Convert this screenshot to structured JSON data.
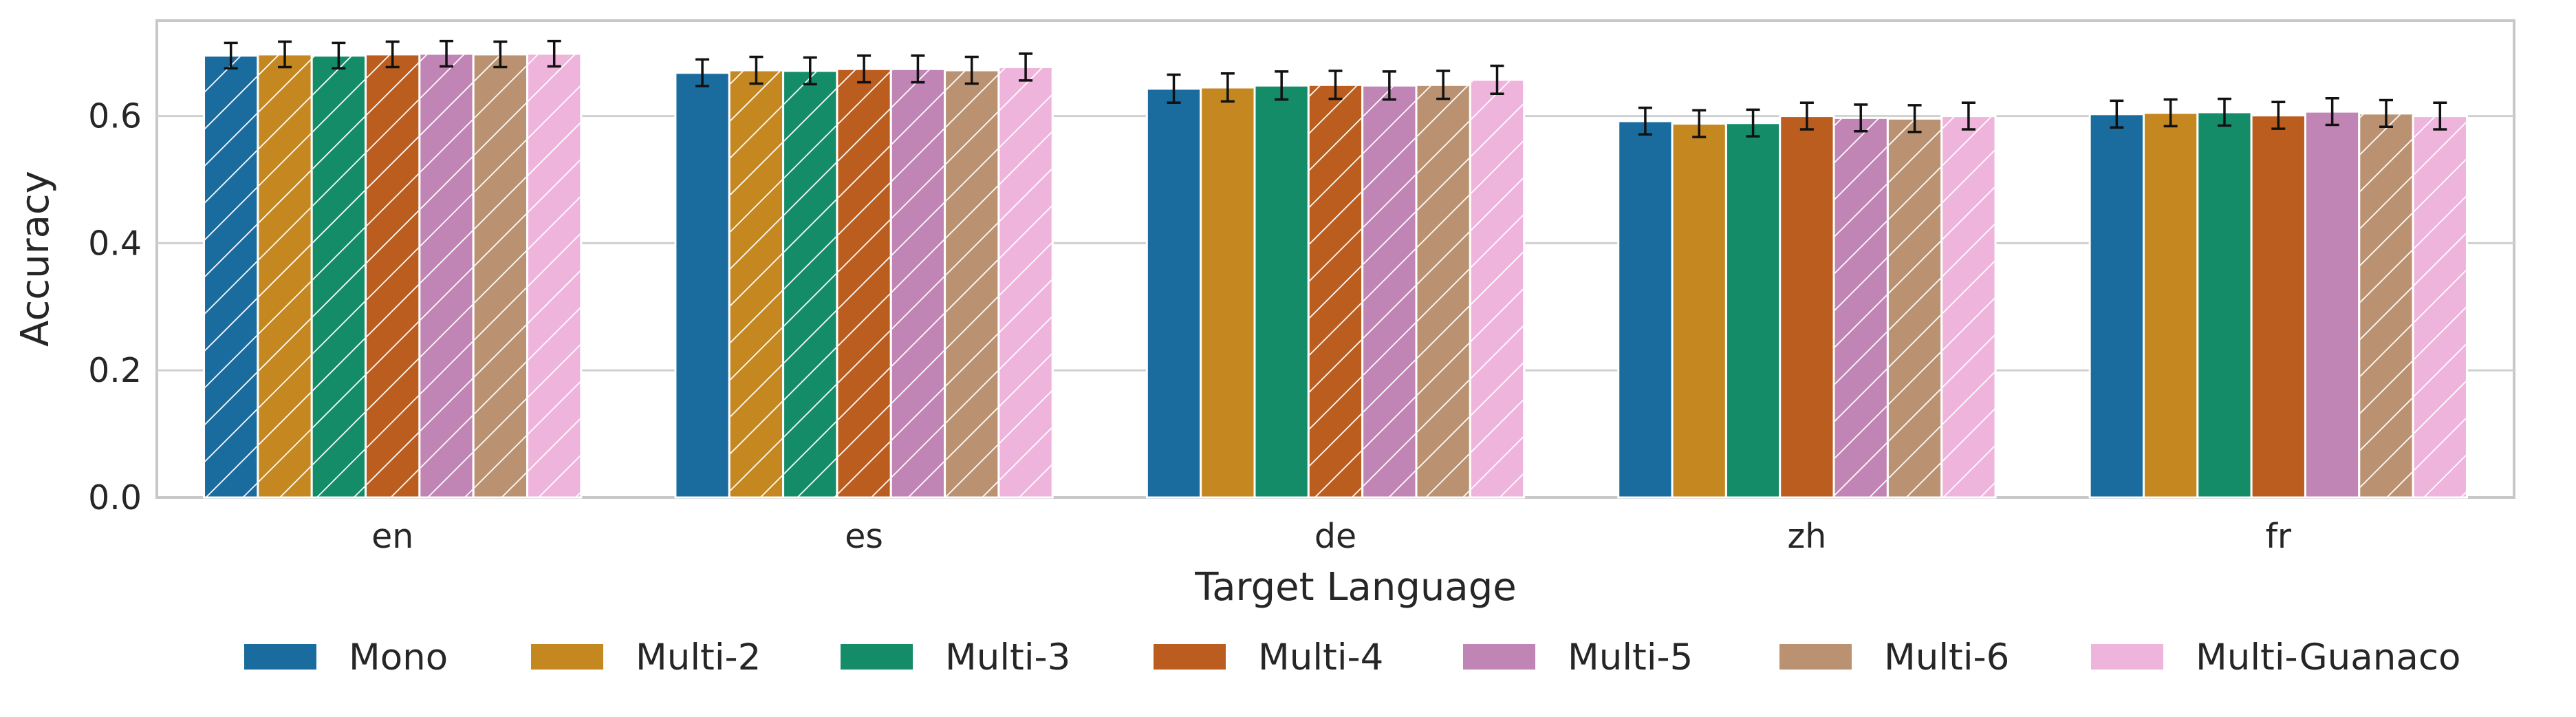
{
  "chart_data": {
    "type": "bar",
    "xlabel": "Target Language",
    "ylabel": "Accuracy",
    "ylim": [
      0,
      0.75
    ],
    "yticks": [
      "0.0",
      "0.2",
      "0.4",
      "0.6"
    ],
    "categories": [
      "en",
      "es",
      "de",
      "zh",
      "fr"
    ],
    "grid": true,
    "legend_placement": "bottom",
    "series": [
      {
        "name": "Mono",
        "color": "#1a6b9e",
        "values": [
          0.695,
          0.668,
          0.643,
          0.592,
          0.603
        ],
        "error": [
          0.02,
          0.021,
          0.022,
          0.021,
          0.021
        ],
        "hatched": [
          true,
          false,
          false,
          false,
          false
        ]
      },
      {
        "name": "Multi-2",
        "color": "#c58720",
        "values": [
          0.697,
          0.672,
          0.645,
          0.588,
          0.605
        ],
        "error": [
          0.02,
          0.021,
          0.022,
          0.021,
          0.021
        ],
        "hatched": [
          true,
          true,
          false,
          false,
          false
        ]
      },
      {
        "name": "Multi-3",
        "color": "#148c68",
        "values": [
          0.695,
          0.671,
          0.648,
          0.589,
          0.606
        ],
        "error": [
          0.02,
          0.021,
          0.022,
          0.021,
          0.021
        ],
        "hatched": [
          true,
          true,
          false,
          false,
          false
        ]
      },
      {
        "name": "Multi-4",
        "color": "#ba5d1e",
        "values": [
          0.697,
          0.674,
          0.649,
          0.6,
          0.601
        ],
        "error": [
          0.02,
          0.021,
          0.022,
          0.021,
          0.021
        ],
        "hatched": [
          true,
          true,
          true,
          false,
          false
        ]
      },
      {
        "name": "Multi-5",
        "color": "#c084b5",
        "values": [
          0.698,
          0.674,
          0.648,
          0.597,
          0.607
        ],
        "error": [
          0.02,
          0.021,
          0.022,
          0.021,
          0.021
        ],
        "hatched": [
          true,
          true,
          true,
          true,
          false
        ]
      },
      {
        "name": "Multi-6",
        "color": "#ba9271",
        "values": [
          0.697,
          0.672,
          0.649,
          0.596,
          0.604
        ],
        "error": [
          0.02,
          0.021,
          0.022,
          0.021,
          0.021
        ],
        "hatched": [
          true,
          true,
          true,
          true,
          true
        ]
      },
      {
        "name": "Multi-Guanaco",
        "color": "#efb4dc",
        "values": [
          0.698,
          0.677,
          0.657,
          0.6,
          0.6
        ],
        "error": [
          0.02,
          0.021,
          0.022,
          0.021,
          0.021
        ],
        "hatched": [
          true,
          true,
          true,
          true,
          true
        ]
      }
    ]
  }
}
